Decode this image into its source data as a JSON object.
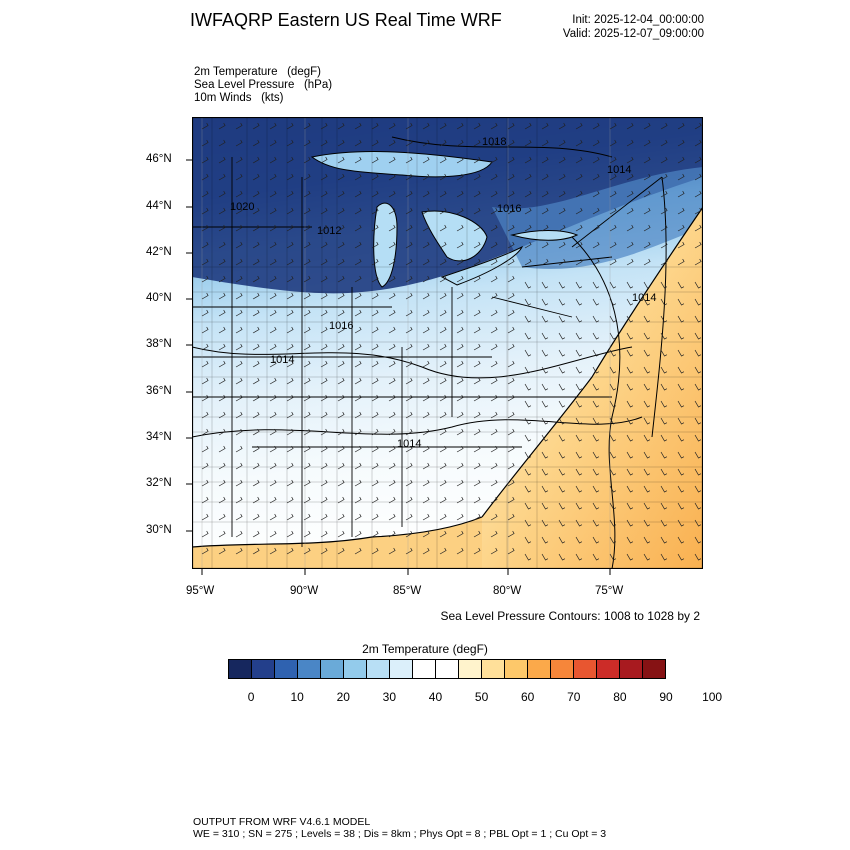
{
  "header": {
    "title": "IWFAQRP Eastern US Real Time WRF",
    "init": "Init: 2025-12-04_00:00:00",
    "valid": "Valid: 2025-12-07_09:00:00"
  },
  "fields": {
    "line1": "2m Temperature   (degF)",
    "line2": "Sea Level Pressure   (hPa)",
    "line3": "10m Winds   (kts)"
  },
  "map": {
    "lat_labels": [
      "46°N",
      "44°N",
      "42°N",
      "40°N",
      "38°N",
      "36°N",
      "34°N",
      "32°N",
      "30°N"
    ],
    "lon_labels": [
      "95°W",
      "90°W",
      "85°W",
      "80°W",
      "75°W"
    ],
    "pressure_labels": [
      "1018",
      "1014",
      "1020",
      "1012",
      "1016",
      "1014",
      "1016",
      "1014",
      "1014"
    ],
    "contour_note": "Sea Level Pressure Contours: 1008 to 1028 by 2"
  },
  "colorbar": {
    "title": "2m Temperature  (degF)",
    "colors": [
      "#16275e",
      "#233f8b",
      "#2f62b0",
      "#4a86c6",
      "#6aaad8",
      "#93cbeb",
      "#b8dff5",
      "#dbeffa",
      "#ffffff",
      "#ffffff",
      "#fff3cc",
      "#ffe09a",
      "#fdc86a",
      "#fba94a",
      "#f6863a",
      "#e85630",
      "#cc2c28",
      "#a81a1f",
      "#861214"
    ],
    "tick_labels": [
      "0",
      "10",
      "20",
      "30",
      "40",
      "50",
      "60",
      "70",
      "80",
      "90",
      "100"
    ]
  },
  "footer": {
    "line1": "OUTPUT FROM WRF V4.6.1 MODEL",
    "line2": "WE = 310 ; SN = 275 ; Levels = 38 ; Dis = 8km ; Phys Opt = 8 ; PBL Opt = 1 ; Cu Opt = 3"
  }
}
